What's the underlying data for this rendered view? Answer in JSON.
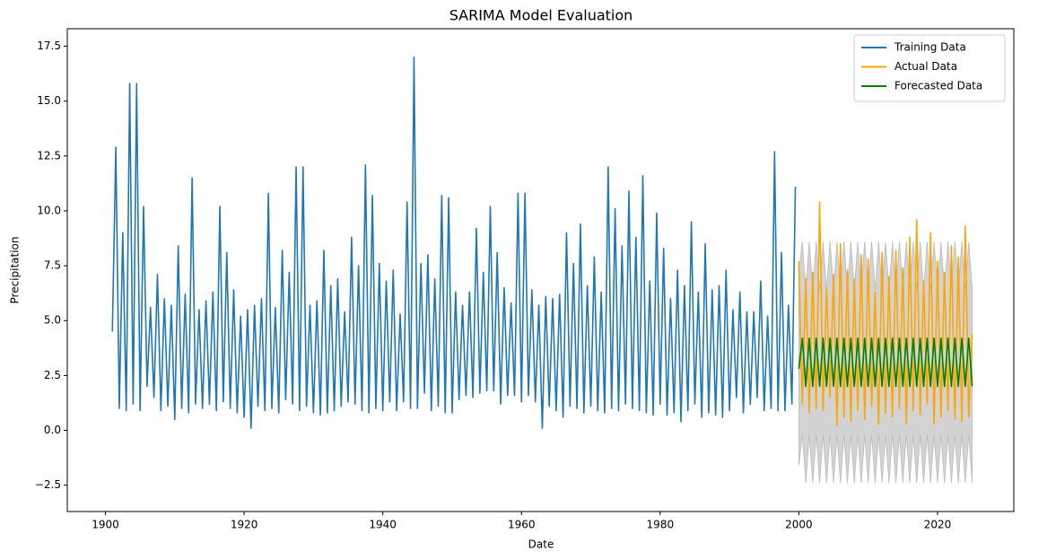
{
  "chart_data": {
    "type": "line",
    "title": "SARIMA Model Evaluation",
    "x_label": "Date",
    "y_label": "Precipitation",
    "xlim": [
      1894.5,
      2031
    ],
    "ylim": [
      -3.7,
      18.3
    ],
    "xticks": [
      1900,
      1920,
      1940,
      1960,
      1980,
      2000,
      2020
    ],
    "yticks": [
      {
        "value": -2.5,
        "label": "−2.5"
      },
      {
        "value": 0,
        "label": "0.0"
      },
      2.5,
      {
        "value": 5,
        "label": "5.0"
      },
      7.5,
      {
        "value": 10,
        "label": "10.0"
      },
      12.5,
      {
        "value": 15,
        "label": "15.0"
      },
      17.5
    ],
    "legend": "upper right",
    "series": [
      {
        "name": "Training Data",
        "color": "#1f77b4",
        "x": [
          1901,
          1901.5,
          1902,
          1902.5,
          1903,
          1903.5,
          1904,
          1904.5,
          1905,
          1905.5,
          1906,
          1906.5,
          1907,
          1907.5,
          1908,
          1908.5,
          1909,
          1909.5,
          1910,
          1910.5,
          1911,
          1911.5,
          1912,
          1912.5,
          1913,
          1913.5,
          1914,
          1914.5,
          1915,
          1915.5,
          1916,
          1916.5,
          1917,
          1917.5,
          1918,
          1918.5,
          1919,
          1919.5,
          1920,
          1920.5,
          1921,
          1921.5,
          1922,
          1922.5,
          1923,
          1923.5,
          1924,
          1924.5,
          1925,
          1925.5,
          1926,
          1926.5,
          1927,
          1927.5,
          1928,
          1928.5,
          1929,
          1929.5,
          1930,
          1930.5,
          1931,
          1931.5,
          1932,
          1932.5,
          1933,
          1933.5,
          1934,
          1934.5,
          1935,
          1935.5,
          1936,
          1936.5,
          1937,
          1937.5,
          1938,
          1938.5,
          1939,
          1939.5,
          1940,
          1940.5,
          1941,
          1941.5,
          1942,
          1942.5,
          1943,
          1943.5,
          1944,
          1944.5,
          1945,
          1945.5,
          1946,
          1946.5,
          1947,
          1947.5,
          1948,
          1948.5,
          1949,
          1949.5,
          1950,
          1950.5,
          1951,
          1951.5,
          1952,
          1952.5,
          1953,
          1953.5,
          1954,
          1954.5,
          1955,
          1955.5,
          1956,
          1956.5,
          1957,
          1957.5,
          1958,
          1958.5,
          1959,
          1959.5,
          1960,
          1960.5,
          1961,
          1961.5,
          1962,
          1962.5,
          1963,
          1963.5,
          1964,
          1964.5,
          1965,
          1965.5,
          1966,
          1966.5,
          1967,
          1967.5,
          1968,
          1968.5,
          1969,
          1969.5,
          1970,
          1970.5,
          1971,
          1971.5,
          1972,
          1972.5,
          1973,
          1973.5,
          1974,
          1974.5,
          1975,
          1975.5,
          1976,
          1976.5,
          1977,
          1977.5,
          1978,
          1978.5,
          1979,
          1979.5,
          1980,
          1980.5,
          1981,
          1981.5,
          1982,
          1982.5,
          1983,
          1983.5,
          1984,
          1984.5,
          1985,
          1985.5,
          1986,
          1986.5,
          1987,
          1987.5,
          1988,
          1988.5,
          1989,
          1989.5,
          1990,
          1990.5,
          1991,
          1991.5,
          1992,
          1992.5,
          1993,
          1993.5,
          1994,
          1994.5,
          1995,
          1995.5,
          1996,
          1996.5,
          1997,
          1997.5,
          1998,
          1998.5,
          1999,
          1999.5
        ],
        "values": [
          4.5,
          12.9,
          1.0,
          9.0,
          0.9,
          15.8,
          1.2,
          15.8,
          0.9,
          10.2,
          2.0,
          5.6,
          1.5,
          7.1,
          0.9,
          6.0,
          1.1,
          5.7,
          0.5,
          8.4,
          1.0,
          6.2,
          0.8,
          11.5,
          1.2,
          5.5,
          1.0,
          5.9,
          1.2,
          6.3,
          0.9,
          10.2,
          1.3,
          8.1,
          1.0,
          6.4,
          0.8,
          5.2,
          0.6,
          5.5,
          0.1,
          5.7,
          1.1,
          6.0,
          0.9,
          10.8,
          1.0,
          5.6,
          0.8,
          8.2,
          1.4,
          7.2,
          1.2,
          12.0,
          0.9,
          12.0,
          1.1,
          5.7,
          0.8,
          5.9,
          0.7,
          8.2,
          0.8,
          6.6,
          0.9,
          6.9,
          1.1,
          5.4,
          1.3,
          8.8,
          1.2,
          7.5,
          0.9,
          12.1,
          0.8,
          10.7,
          1.0,
          7.6,
          0.9,
          6.8,
          1.3,
          7.3,
          0.9,
          5.3,
          1.3,
          10.4,
          1.0,
          17.0,
          1.0,
          7.6,
          1.7,
          8.0,
          0.9,
          6.9,
          1.1,
          10.7,
          0.8,
          10.6,
          0.8,
          6.3,
          1.4,
          5.7,
          1.6,
          6.3,
          1.5,
          9.2,
          1.7,
          7.2,
          1.8,
          10.2,
          1.8,
          8.1,
          1.2,
          6.5,
          1.6,
          5.8,
          1.6,
          10.8,
          1.3,
          10.8,
          1.6,
          6.4,
          1.3,
          5.7,
          0.1,
          6.1,
          1.1,
          6.0,
          0.9,
          6.2,
          0.6,
          9.0,
          1.1,
          7.6,
          1.0,
          9.4,
          0.8,
          6.6,
          1.1,
          7.9,
          0.9,
          6.3,
          0.8,
          12.0,
          1.0,
          10.1,
          0.9,
          8.4,
          1.2,
          10.9,
          1.0,
          8.8,
          0.9,
          11.6,
          0.8,
          6.8,
          0.7,
          9.9,
          1.2,
          8.3,
          0.7,
          6.0,
          0.8,
          7.3,
          0.4,
          6.6,
          0.9,
          9.5,
          1.2,
          6.3,
          0.6,
          8.5,
          0.8,
          6.4,
          0.7,
          6.6,
          0.6,
          7.3,
          0.9,
          5.5,
          1.5,
          6.3,
          0.8,
          5.4,
          1.2,
          5.4,
          1.5,
          6.8,
          0.9,
          5.2,
          1.0,
          12.7,
          0.9,
          8.1,
          0.9,
          5.7,
          1.2,
          11.1
        ]
      },
      {
        "name": "Actual Data",
        "color": "orange",
        "x": [
          2000,
          2000.5,
          2001,
          2001.5,
          2002,
          2002.5,
          2003,
          2003.5,
          2004,
          2004.5,
          2005,
          2005.5,
          2006,
          2006.5,
          2007,
          2007.5,
          2008,
          2008.5,
          2009,
          2009.5,
          2010,
          2010.5,
          2011,
          2011.5,
          2012,
          2012.5,
          2013,
          2013.5,
          2014,
          2014.5,
          2015,
          2015.5,
          2016,
          2016.5,
          2017,
          2017.5,
          2018,
          2018.5,
          2019,
          2019.5,
          2020,
          2020.5,
          2021,
          2021.5,
          2022,
          2022.5,
          2023,
          2023.5,
          2024,
          2024.5,
          2025
        ],
        "values": [
          7.7,
          1.2,
          6.9,
          0.8,
          7.2,
          1.0,
          10.4,
          0.9,
          6.5,
          1.5,
          7.1,
          0.2,
          8.5,
          0.6,
          7.3,
          0.4,
          6.9,
          0.9,
          8.0,
          0.5,
          7.8,
          1.1,
          6.3,
          0.3,
          8.1,
          0.8,
          7.0,
          0.6,
          8.2,
          1.0,
          7.4,
          0.3,
          8.8,
          0.9,
          9.6,
          0.7,
          6.8,
          1.2,
          9.0,
          0.3,
          7.7,
          0.6,
          7.2,
          0.9,
          8.4,
          0.5,
          7.9,
          0.4,
          9.3,
          0.6,
          4.4
        ]
      },
      {
        "name": "Forecasted Data",
        "color": "green",
        "x": [
          2000,
          2000.5,
          2001,
          2001.5,
          2002,
          2002.5,
          2003,
          2003.5,
          2004,
          2004.5,
          2005,
          2005.5,
          2006,
          2006.5,
          2007,
          2007.5,
          2008,
          2008.5,
          2009,
          2009.5,
          2010,
          2010.5,
          2011,
          2011.5,
          2012,
          2012.5,
          2013,
          2013.5,
          2014,
          2014.5,
          2015,
          2015.5,
          2016,
          2016.5,
          2017,
          2017.5,
          2018,
          2018.5,
          2019,
          2019.5,
          2020,
          2020.5,
          2021,
          2021.5,
          2022,
          2022.5,
          2023,
          2023.5,
          2024,
          2024.5,
          2025
        ],
        "values": [
          2.8,
          4.2,
          2.0,
          4.2,
          2.0,
          4.2,
          2.0,
          4.2,
          2.0,
          4.2,
          2.0,
          4.2,
          2.0,
          4.2,
          2.0,
          4.2,
          2.0,
          4.2,
          2.0,
          4.2,
          2.0,
          4.2,
          2.0,
          4.2,
          2.0,
          4.2,
          2.0,
          4.2,
          2.0,
          4.2,
          2.0,
          4.2,
          2.0,
          4.2,
          2.0,
          4.2,
          2.0,
          4.2,
          2.0,
          4.2,
          2.0,
          4.2,
          2.0,
          4.2,
          2.0,
          4.2,
          2.0,
          4.2,
          2.0,
          4.2,
          2.0
        ]
      }
    ],
    "confidence_interval": {
      "color": "#d3d3d3",
      "lower": [
        -1.6,
        -0.2,
        -2.4,
        -0.2,
        -2.4,
        -0.2,
        -2.4,
        -0.2,
        -2.4,
        -0.2,
        -2.4,
        -0.2,
        -2.4,
        -0.2,
        -2.4,
        -0.2,
        -2.4,
        -0.2,
        -2.4,
        -0.2,
        -2.4,
        -0.2,
        -2.4,
        -0.2,
        -2.4,
        -0.2,
        -2.4,
        -0.2,
        -2.4,
        -0.2,
        -2.4,
        -0.2,
        -2.4,
        -0.2,
        -2.4,
        -0.2,
        -2.4,
        -0.2,
        -2.4,
        -0.2,
        -2.4,
        -0.2,
        -2.4,
        -0.2,
        -2.4,
        -0.2,
        -2.4,
        -0.2,
        -2.4,
        -0.2,
        -2.4
      ],
      "upper": [
        7.2,
        8.6,
        6.4,
        8.6,
        6.4,
        8.6,
        6.4,
        8.6,
        6.4,
        8.6,
        6.4,
        8.6,
        6.4,
        8.6,
        6.4,
        8.6,
        6.4,
        8.6,
        6.4,
        8.6,
        6.4,
        8.6,
        6.4,
        8.6,
        6.4,
        8.6,
        6.4,
        8.6,
        6.4,
        8.6,
        6.4,
        8.6,
        6.4,
        8.6,
        6.4,
        8.6,
        6.4,
        8.6,
        6.4,
        8.6,
        6.4,
        8.6,
        6.4,
        8.6,
        6.4,
        8.6,
        6.4,
        8.6,
        6.4,
        8.6,
        6.4
      ]
    }
  }
}
